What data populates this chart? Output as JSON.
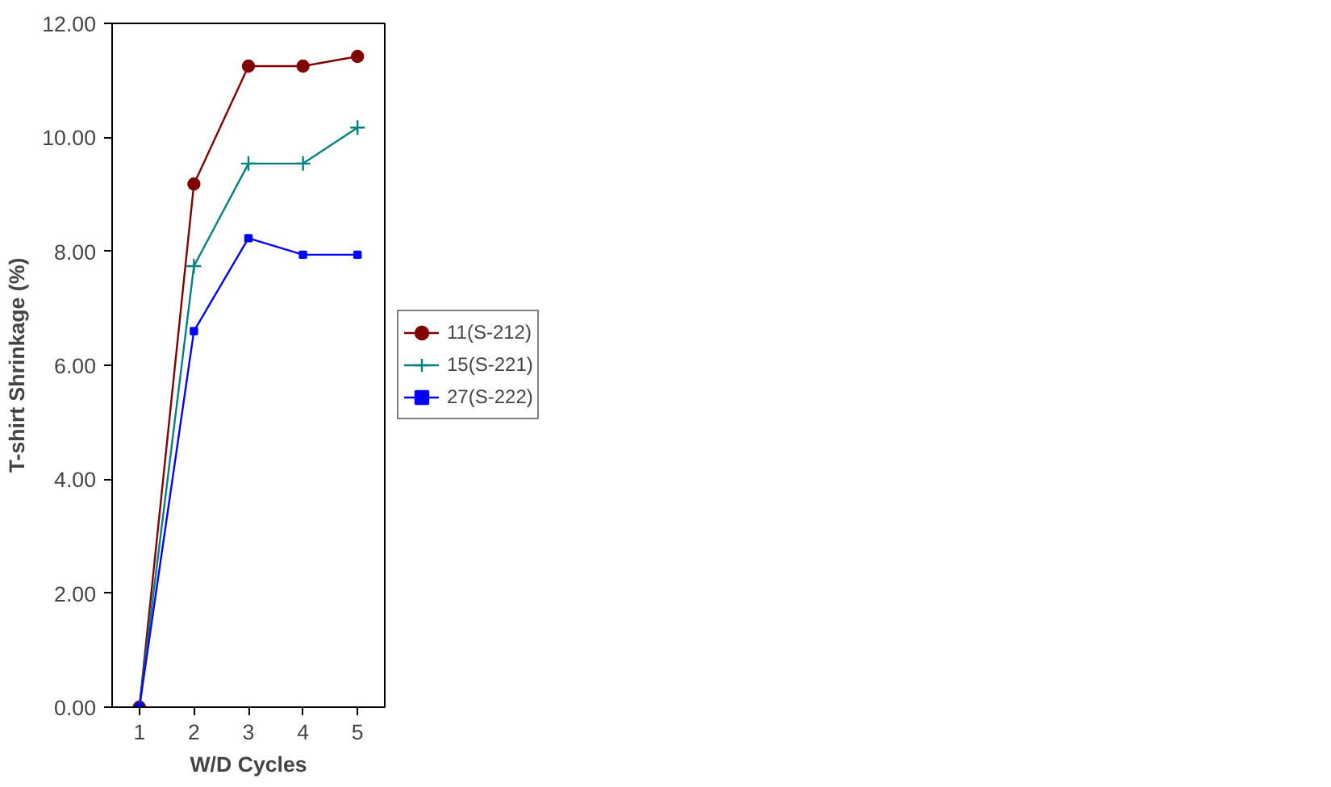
{
  "chart_data": {
    "type": "line",
    "xlabel": "W/D Cycles",
    "ylabel": "T-shirt Shrinkage (%)",
    "categories": [
      "1",
      "2",
      "3",
      "4",
      "5"
    ],
    "ylim": [
      0,
      12
    ],
    "yticks": [
      {
        "value": 0,
        "label": "0.00"
      },
      {
        "value": 2,
        "label": "2.00"
      },
      {
        "value": 4,
        "label": "4.00"
      },
      {
        "value": 6,
        "label": "6.00"
      },
      {
        "value": 8,
        "label": "8.00"
      },
      {
        "value": 10,
        "label": "10.00"
      },
      {
        "value": 12,
        "label": "12.00"
      }
    ],
    "grid": false,
    "legend": "right",
    "series": [
      {
        "name": "11(S-212)",
        "color": "#800000",
        "marker": "circle",
        "values": [
          0,
          9.18,
          11.25,
          11.25,
          11.42
        ]
      },
      {
        "name": "15(S-221)",
        "color": "#008080",
        "marker": "cross",
        "values": [
          0,
          7.74,
          9.54,
          9.54,
          10.17
        ]
      },
      {
        "name": "27(S-222)",
        "color": "#0000ff",
        "marker": "square",
        "values": [
          0,
          6.6,
          8.23,
          7.94,
          7.94
        ]
      }
    ]
  }
}
